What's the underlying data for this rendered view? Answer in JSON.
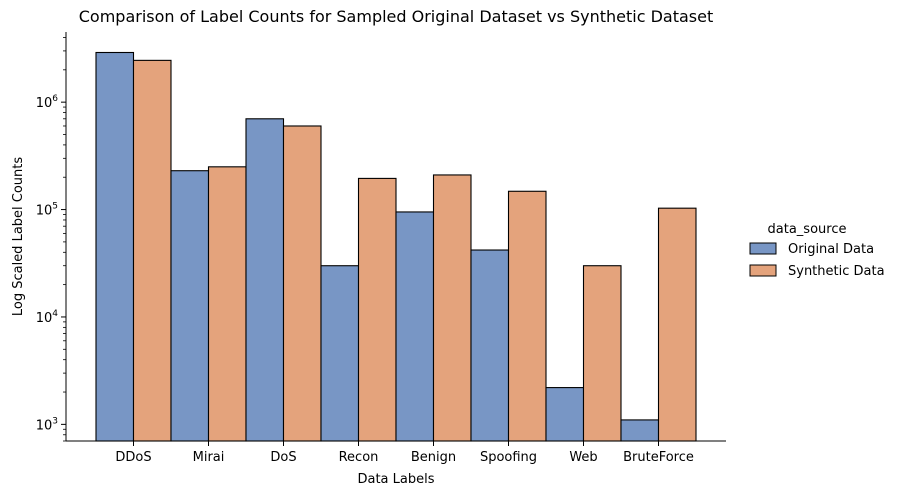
{
  "chart_data": {
    "type": "bar",
    "title": "Comparison of Label Counts for Sampled Original Dataset vs Synthetic Dataset",
    "xlabel": "Data Labels",
    "ylabel": "Log Scaled Label Counts",
    "yscale": "log",
    "ylim": [
      700,
      4500000
    ],
    "yticks": [
      1000,
      10000,
      100000,
      1000000
    ],
    "ytick_base": "10",
    "ytick_exponents": [
      "3",
      "4",
      "5",
      "6"
    ],
    "categories": [
      "DDoS",
      "Mirai",
      "DoS",
      "Recon",
      "Benign",
      "Spoofing",
      "Web",
      "BruteForce"
    ],
    "series": [
      {
        "name": "Original Data",
        "color": "#7896c5",
        "values": [
          2900000,
          230000,
          700000,
          30000,
          95000,
          42000,
          2200,
          1100
        ]
      },
      {
        "name": "Synthetic Data",
        "color": "#e4a37c",
        "values": [
          2450000,
          250000,
          600000,
          195000,
          210000,
          148000,
          30000,
          103000
        ]
      }
    ],
    "grid": false,
    "legend": {
      "title": "data_source",
      "placement": "right"
    }
  }
}
